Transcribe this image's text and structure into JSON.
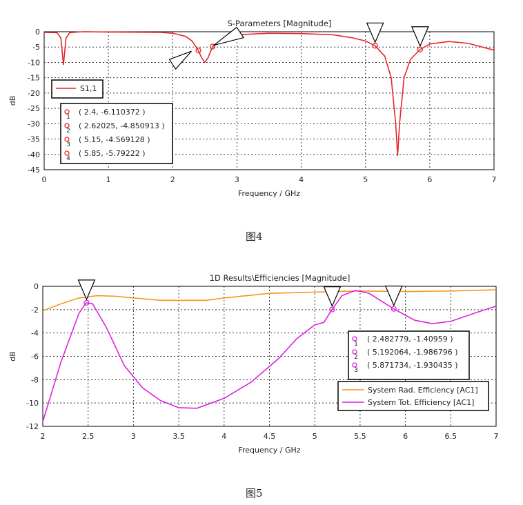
{
  "chart_data": [
    {
      "type": "line",
      "title": "S-Parameters [Magnitude]",
      "xlabel": "Frequency / GHz",
      "ylabel": "dB",
      "xlim": [
        0,
        7
      ],
      "ylim": [
        -45,
        0
      ],
      "xticks": [
        0,
        1,
        2,
        3,
        4,
        5,
        6,
        7
      ],
      "yticks": [
        0,
        -5,
        -10,
        -15,
        -20,
        -25,
        -30,
        -35,
        -40,
        -45
      ],
      "grid": true,
      "legend_placement": "left",
      "series": [
        {
          "name": "S1,1",
          "color": "#e8252a",
          "x": [
            0,
            0.2,
            0.26,
            0.3,
            0.34,
            0.4,
            0.6,
            1,
            1.8,
            2.0,
            2.2,
            2.3,
            2.4,
            2.45,
            2.5,
            2.55,
            2.62,
            2.8,
            3,
            3.5,
            4,
            4.5,
            4.8,
            5.0,
            5.15,
            5.3,
            5.4,
            5.47,
            5.5,
            5.53,
            5.6,
            5.7,
            5.85,
            6.0,
            6.3,
            6.6,
            7
          ],
          "y": [
            -0.2,
            -0.3,
            -2,
            -10.8,
            -2,
            -0.3,
            0,
            -0.1,
            -0.2,
            -0.5,
            -1.5,
            -3,
            -6.11,
            -8.5,
            -10,
            -8.5,
            -4.85,
            -2,
            -1,
            -0.5,
            -0.6,
            -1,
            -2,
            -3,
            -4.57,
            -8,
            -15,
            -30,
            -40.5,
            -30,
            -15,
            -9,
            -5.79,
            -4,
            -3.2,
            -3.8,
            -6
          ]
        }
      ],
      "markers": [
        {
          "id": "1",
          "x": 2.4,
          "y": -6.110372,
          "label": "( 2.4, -6.110372 )"
        },
        {
          "id": "2",
          "x": 2.62025,
          "y": -4.850913,
          "label": "( 2.62025, -4.850913 )"
        },
        {
          "id": "3",
          "x": 5.15,
          "y": -4.569128,
          "label": "( 5.15, -4.569128 )"
        },
        {
          "id": "4",
          "x": 5.85,
          "y": -5.79222,
          "label": "( 5.85, -5.79222 )"
        }
      ],
      "caption": "图4"
    },
    {
      "type": "line",
      "title": "1D Results\\Efficiencies [Magnitude]",
      "xlabel": "Frequency / GHz",
      "ylabel": "dB",
      "xlim": [
        2,
        7
      ],
      "ylim": [
        -12,
        0
      ],
      "xticks": [
        2,
        2.5,
        3,
        3.5,
        4,
        4.5,
        5,
        5.5,
        6,
        6.5,
        7
      ],
      "yticks": [
        0,
        -2,
        -4,
        -6,
        -8,
        -10,
        -12
      ],
      "grid": true,
      "legend_placement": "bottom-right",
      "series": [
        {
          "name": "System Rad. Efficiency [AC1]",
          "color": "#f7941d",
          "x": [
            2,
            2.2,
            2.4,
            2.6,
            2.8,
            3,
            3.3,
            3.6,
            3.8,
            4,
            4.5,
            5,
            5.5,
            6,
            6.5,
            7
          ],
          "y": [
            -2.1,
            -1.5,
            -1.0,
            -0.8,
            -0.85,
            -1.0,
            -1.2,
            -1.2,
            -1.2,
            -1.0,
            -0.6,
            -0.5,
            -0.4,
            -0.45,
            -0.4,
            -0.3
          ]
        },
        {
          "name": "System Tot. Efficiency [AC1]",
          "color": "#e020e0",
          "x": [
            2,
            2.2,
            2.4,
            2.48,
            2.55,
            2.7,
            2.9,
            3.1,
            3.3,
            3.5,
            3.7,
            4,
            4.3,
            4.6,
            4.8,
            5,
            5.1,
            5.19,
            5.3,
            5.45,
            5.6,
            5.87,
            6.1,
            6.3,
            6.5,
            6.8,
            7
          ],
          "y": [
            -11.6,
            -6.5,
            -2.3,
            -1.41,
            -1.5,
            -3.5,
            -6.8,
            -8.7,
            -9.8,
            -10.4,
            -10.45,
            -9.6,
            -8.2,
            -6.2,
            -4.5,
            -3.3,
            -3.1,
            -1.99,
            -0.8,
            -0.35,
            -0.6,
            -1.93,
            -2.9,
            -3.2,
            -3.0,
            -2.2,
            -1.7
          ]
        }
      ],
      "markers": [
        {
          "id": "1",
          "x": 2.482779,
          "y": -1.40959,
          "label": "( 2.482779, -1.40959 )"
        },
        {
          "id": "2",
          "x": 5.192064,
          "y": -1.986796,
          "label": "( 5.192064, -1.986796 )"
        },
        {
          "id": "3",
          "x": 5.871734,
          "y": -1.930435,
          "label": "( 5.871734, -1.930435 )"
        }
      ],
      "caption": "图5"
    }
  ]
}
